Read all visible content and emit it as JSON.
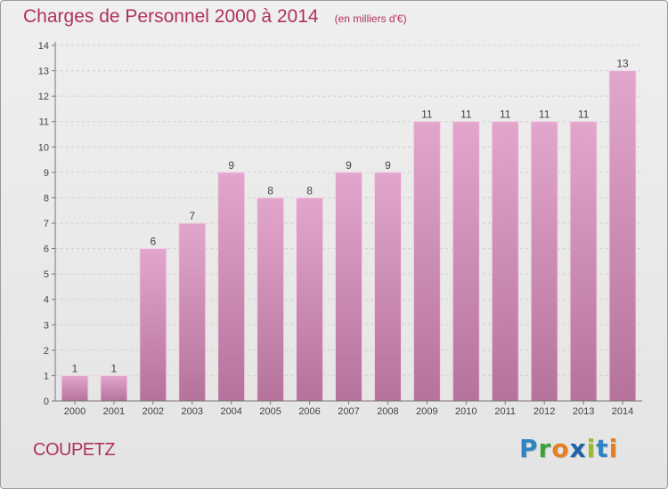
{
  "title": "Charges de Personnel 2000 à 2014",
  "subtitle": "(en milliers d'€)",
  "commune": "COUPETZ",
  "logo": {
    "text": "Proxiti",
    "letters": [
      {
        "char": "P",
        "color": "#2e86c1"
      },
      {
        "char": "r",
        "color": "#3aa13a"
      },
      {
        "char": "o",
        "color": "#e67e22"
      },
      {
        "char": "x",
        "color": "#1f5fa8"
      },
      {
        "char": "i",
        "color": "#9bbb2e"
      },
      {
        "char": "t",
        "color": "#2e86c1"
      },
      {
        "char": "i",
        "color": "#e67e22"
      }
    ]
  },
  "colors": {
    "bar_top": "#e2a6cc",
    "bar_bottom": "#b5739b",
    "bar_edge": "#f3d3e6",
    "text": "#b03060",
    "axis": "#777777",
    "grid": "#d0d0d0"
  },
  "chart_data": {
    "type": "bar",
    "categories": [
      "2000",
      "2001",
      "2002",
      "2003",
      "2004",
      "2005",
      "2006",
      "2007",
      "2008",
      "2009",
      "2010",
      "2011",
      "2012",
      "2013",
      "2014"
    ],
    "values": [
      1,
      1,
      6,
      7,
      9,
      8,
      8,
      9,
      9,
      11,
      11,
      11,
      11,
      11,
      13
    ],
    "value_labels": [
      "1",
      "1",
      "6",
      "7",
      "9",
      "8",
      "8",
      "9",
      "9",
      "11",
      "11",
      "11",
      "11",
      "11",
      "13"
    ],
    "yticks": [
      0,
      1,
      2,
      3,
      4,
      5,
      6,
      7,
      8,
      9,
      10,
      11,
      12,
      13,
      14
    ],
    "ylim": [
      0,
      14
    ],
    "xlabel": "",
    "ylabel": "",
    "grid": true
  }
}
